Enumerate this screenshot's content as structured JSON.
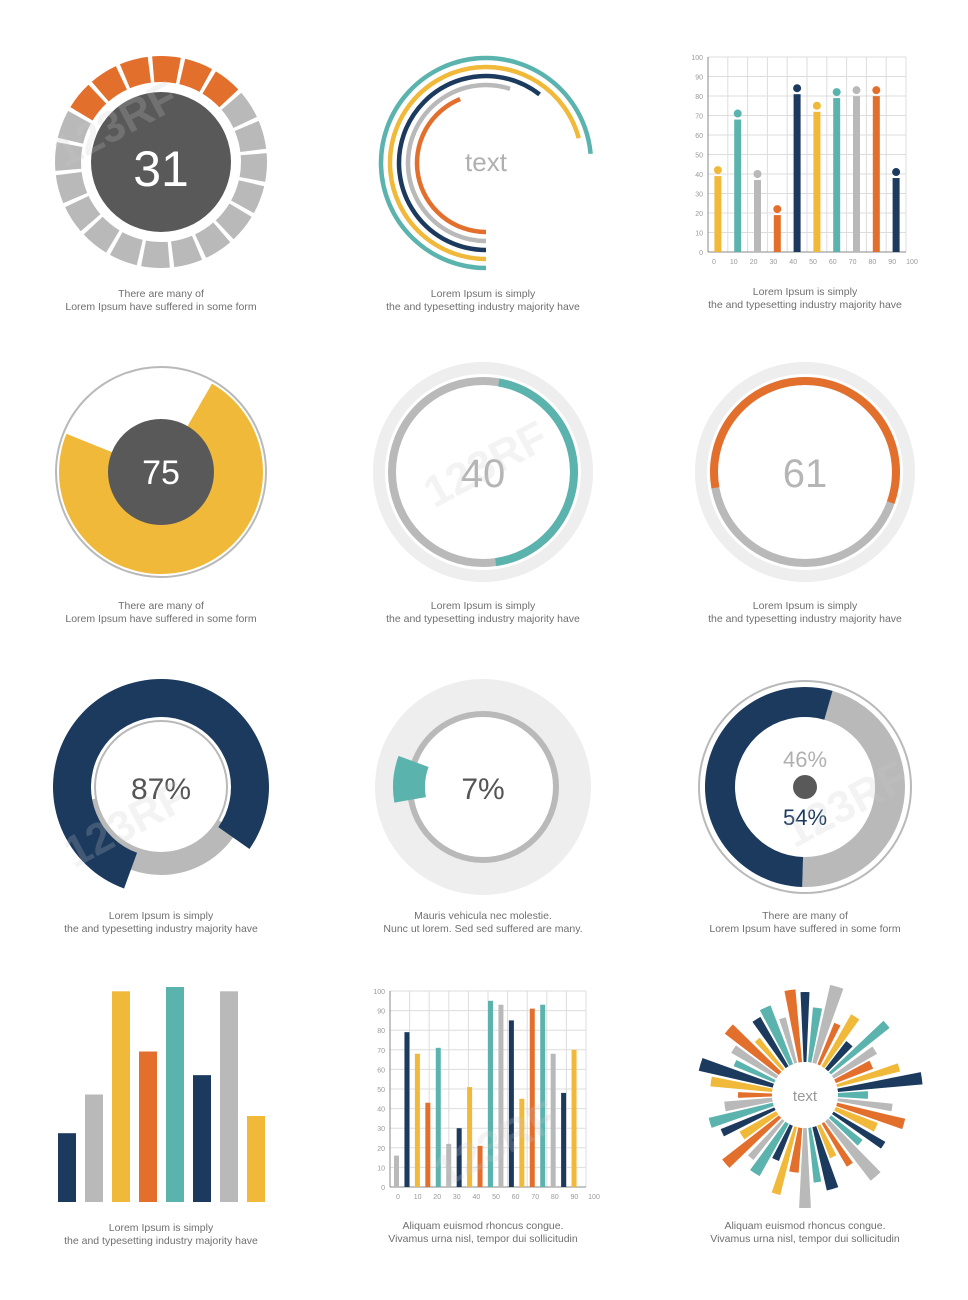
{
  "colors": {
    "orange": "#e36f2c",
    "gray": "#b9b9b9",
    "lightgray": "#eeeeee",
    "dark": "#595959",
    "yellow": "#f0b93a",
    "teal": "#5bb3ae",
    "navy": "#1b3a5e"
  },
  "captions": {
    "c1": [
      "There are many  of",
      "Lorem Ipsum  have suffered  in some form"
    ],
    "c2": [
      "Lorem Ipsum is simply",
      "the  and typesetting industry majority have"
    ],
    "c3": [
      "Lorem Ipsum is simply",
      "the  and typesetting industry majority have"
    ],
    "c4": [
      "There are many  of",
      "Lorem Ipsum  have suffered  in some form"
    ],
    "c5": [
      "Lorem Ipsum is simply",
      "the  and typesetting industry majority have"
    ],
    "c6": [
      "Lorem Ipsum is simply",
      "the  and typesetting industry majority have"
    ],
    "c7": [
      "Lorem Ipsum is simply",
      "the  and typesetting industry majority have"
    ],
    "c8": [
      "Mauris vehicula nec molestie.",
      "Nunc ut  lorem. Sed sed  suffered  are many."
    ],
    "c9": [
      "There are many  of",
      "Lorem Ipsum  have suffered  in some form"
    ],
    "c10": [
      "Lorem Ipsum is simply",
      "the  and typesetting industry majority have"
    ],
    "c11": [
      "Aliquam euismod rhoncus congue.",
      "Vivamus urna nisl,  tempor dui sollicitudin"
    ],
    "c12": [
      "Aliquam euismod rhoncus congue.",
      "Vivamus urna nisl,  tempor dui sollicitudin"
    ]
  },
  "watermark": "123RF",
  "chart_data": [
    {
      "id": "seg-gauge",
      "type": "pie",
      "label": "31",
      "segments_total": 20,
      "segments_filled": 6,
      "filled_color": "orange"
    },
    {
      "id": "arc-rings",
      "type": "radial-arcs",
      "label": "text",
      "arcs": [
        {
          "color": "teal",
          "sweep": 265
        },
        {
          "color": "yellow",
          "sweep": 255
        },
        {
          "color": "navy",
          "sweep": 218
        },
        {
          "color": "gray",
          "sweep": 198
        },
        {
          "color": "orange",
          "sweep": 158
        }
      ]
    },
    {
      "id": "lollipop",
      "type": "bar",
      "title": "",
      "ylim": [
        0,
        100
      ],
      "y_ticks": [
        "0",
        "10",
        "20",
        "30",
        "40",
        "50",
        "60",
        "70",
        "80",
        "90",
        "100"
      ],
      "x_ticks": [
        "0",
        "10",
        "20",
        "30",
        "40",
        "50",
        "60",
        "70",
        "80",
        "90",
        "100"
      ],
      "bars": [
        {
          "v": 42,
          "c": "yellow"
        },
        {
          "v": 71,
          "c": "teal"
        },
        {
          "v": 40,
          "c": "gray"
        },
        {
          "v": 22,
          "c": "orange"
        },
        {
          "v": 84,
          "c": "navy"
        },
        {
          "v": 75,
          "c": "yellow"
        },
        {
          "v": 82,
          "c": "teal"
        },
        {
          "v": 83,
          "c": "gray"
        },
        {
          "v": 83,
          "c": "orange"
        },
        {
          "v": 41,
          "c": "navy"
        }
      ]
    },
    {
      "id": "gauge-75",
      "type": "pie",
      "label": "75",
      "value": 75,
      "color": "yellow"
    },
    {
      "id": "gauge-40",
      "type": "pie",
      "label": "40",
      "value": 40,
      "color": "teal"
    },
    {
      "id": "gauge-61",
      "type": "pie",
      "label": "61",
      "value": 61,
      "color": "orange"
    },
    {
      "id": "gauge-87",
      "type": "pie",
      "label": "87%",
      "value": 87,
      "color": "navy"
    },
    {
      "id": "gauge-7",
      "type": "pie",
      "label": "7%",
      "value": 7,
      "color": "teal"
    },
    {
      "id": "split-donut",
      "type": "pie",
      "labels": [
        "46%",
        "54%"
      ],
      "values": [
        46,
        54
      ],
      "colors": [
        "gray",
        "navy"
      ]
    },
    {
      "id": "plain-bars",
      "type": "bar",
      "values": [
        32,
        50,
        98,
        70,
        100,
        59,
        98,
        40
      ],
      "colors": [
        "navy",
        "gray",
        "yellow",
        "orange",
        "teal",
        "navy",
        "gray",
        "yellow"
      ]
    },
    {
      "id": "grouped-bars",
      "type": "bar",
      "ylim": [
        0,
        100
      ],
      "y_ticks": [
        "0",
        "10",
        "20",
        "30",
        "40",
        "50",
        "60",
        "70",
        "80",
        "90",
        "100"
      ],
      "x_ticks": [
        "0",
        "10",
        "20",
        "30",
        "40",
        "50",
        "60",
        "70",
        "80",
        "90",
        "100"
      ],
      "series": [
        {
          "name": "gray",
          "values": [
            16,
            22,
            50,
            93,
            68
          ]
        },
        {
          "name": "navy",
          "values": [
            79,
            30,
            85,
            48
          ]
        },
        {
          "name": "yellow",
          "values": [
            68,
            51,
            45,
            70
          ]
        },
        {
          "name": "orange",
          "values": [
            43,
            21,
            91
          ]
        },
        {
          "name": "teal",
          "values": [
            71,
            95,
            93
          ]
        }
      ]
    },
    {
      "id": "radial-burst",
      "type": "bar",
      "label": "text",
      "bars": 44
    }
  ]
}
